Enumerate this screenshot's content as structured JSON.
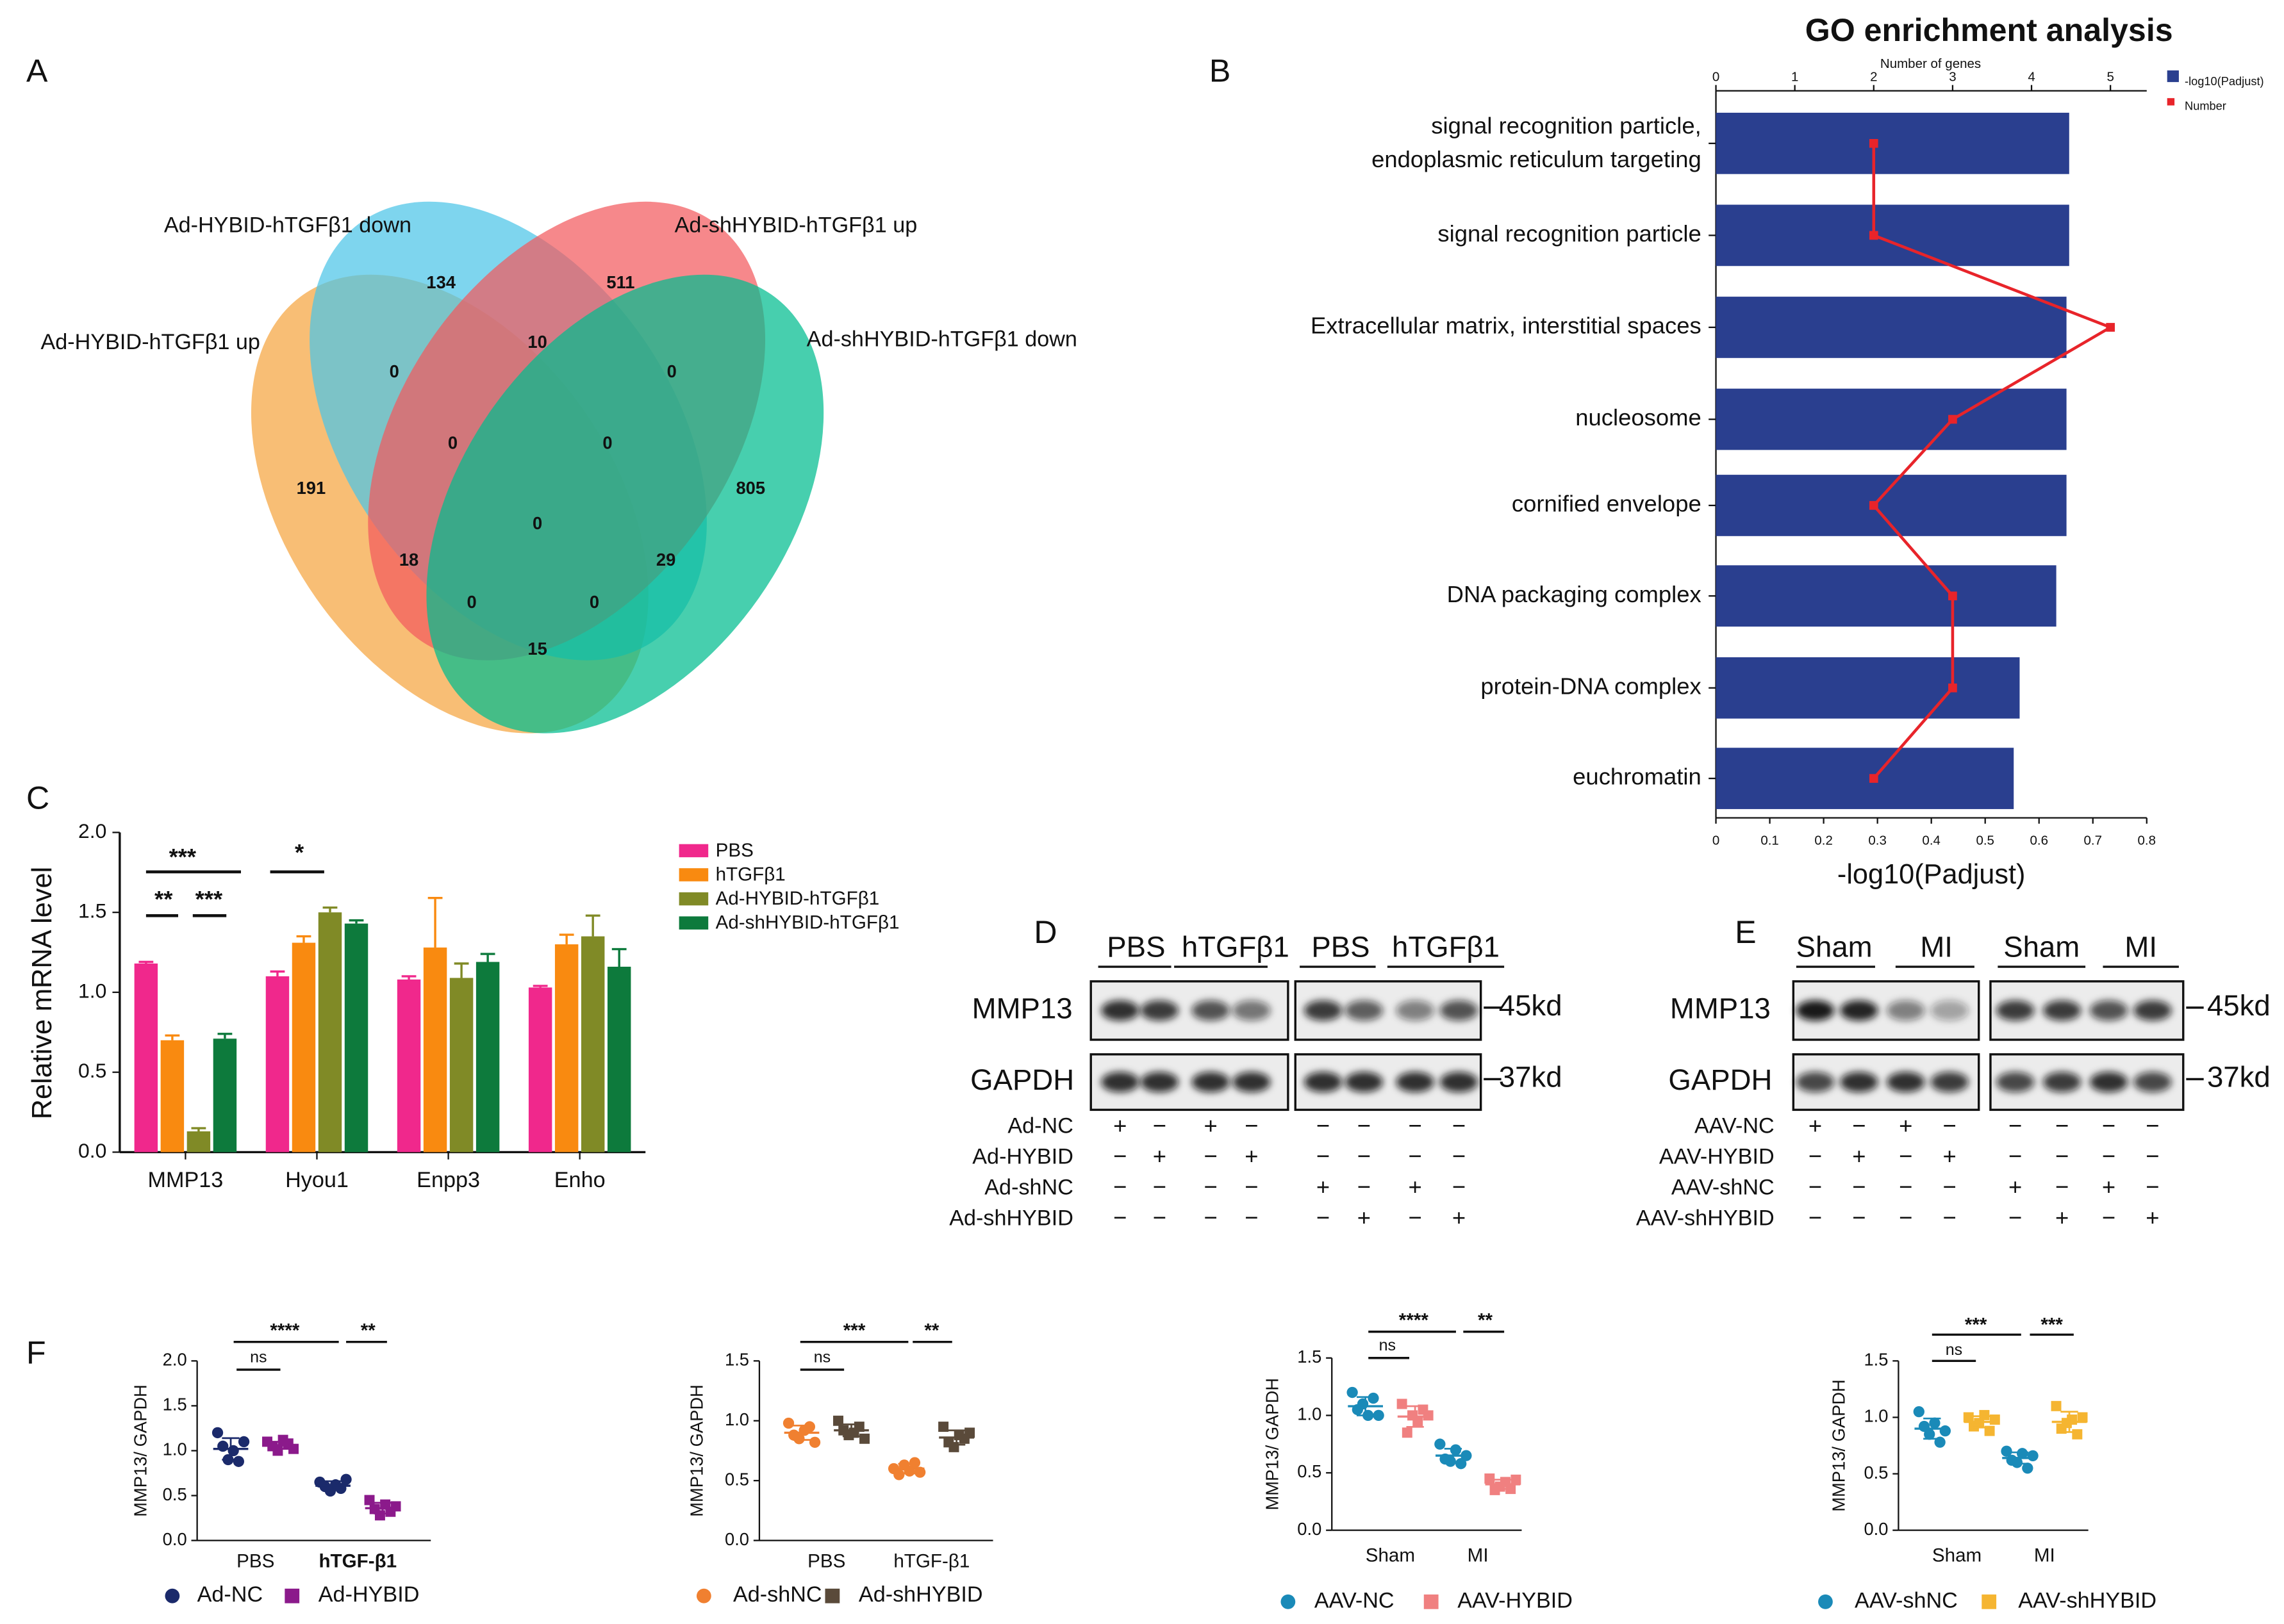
{
  "panel_labels": [
    "A",
    "B",
    "C",
    "D",
    "E",
    "F"
  ],
  "venn": {
    "sets": [
      "Ad-HYBID-hTGFβ1 up",
      "Ad-HYBID-hTGFβ1 down",
      "Ad-shHYBID-hTGFβ1 up",
      "Ad-shHYBID-hTGFβ1 down"
    ],
    "colors": [
      "#f5a540",
      "#4cc5e8",
      "#f25a5e",
      "#00bc8f"
    ],
    "counts": [
      134,
      511,
      0,
      10,
      0,
      191,
      0,
      0,
      805,
      18,
      0,
      29,
      0,
      0,
      15
    ]
  },
  "blots": [
    {
      "groups": [
        "PBS",
        "hTGFβ1",
        "PBS",
        "hTGFβ1"
      ],
      "proteins": [
        "MMP13",
        "GAPDH"
      ],
      "sizes": [
        "45kd",
        "37kd"
      ],
      "treatments": [
        {
          "name": "Ad-NC",
          "signs": [
            "+",
            "−",
            "+",
            "−",
            "−",
            "−",
            "−",
            "−"
          ]
        },
        {
          "name": "Ad-HYBID",
          "signs": [
            "−",
            "+",
            "−",
            "+",
            "−",
            "−",
            "−",
            "−"
          ]
        },
        {
          "name": "Ad-shNC",
          "signs": [
            "−",
            "−",
            "−",
            "−",
            "+",
            "−",
            "+",
            "−"
          ]
        },
        {
          "name": "Ad-shHYBID",
          "signs": [
            "−",
            "−",
            "−",
            "−",
            "−",
            "+",
            "−",
            "+"
          ]
        }
      ]
    },
    {
      "groups": [
        "Sham",
        "MI",
        "Sham",
        "MI"
      ],
      "proteins": [
        "MMP13",
        "GAPDH"
      ],
      "sizes": [
        "45kd",
        "37kd"
      ],
      "treatments": [
        {
          "name": "AAV-NC",
          "signs": [
            "+",
            "−",
            "+",
            "−",
            "−",
            "−",
            "−",
            "−"
          ]
        },
        {
          "name": "AAV-HYBID",
          "signs": [
            "−",
            "+",
            "−",
            "+",
            "−",
            "−",
            "−",
            "−"
          ]
        },
        {
          "name": "AAV-shNC",
          "signs": [
            "−",
            "−",
            "−",
            "−",
            "+",
            "−",
            "+",
            "−"
          ]
        },
        {
          "name": "AAV-shHYBID",
          "signs": [
            "−",
            "−",
            "−",
            "−",
            "−",
            "+",
            "−",
            "+"
          ]
        }
      ]
    }
  ],
  "chart_data": [
    {
      "type": "hbar",
      "title": "GO enrichment analysis",
      "xlabel": "-log10(Padjust)",
      "x2label": "Number of genes",
      "categories": [
        [
          "signal recognition particle,",
          "endoplasmic reticulum targeting"
        ],
        "signal recognition particle",
        "Extracellular matrix, interstitial spaces",
        "nucleosome",
        "cornified envelope",
        "DNA packaging complex",
        "protein-DNA complex",
        "euchromatin"
      ],
      "category_colors": [
        "#111111",
        "#111111",
        "#e8242a",
        "#111111",
        "#111111",
        "#111111",
        "#111111",
        "#111111"
      ],
      "xlim": [
        0,
        0.8
      ],
      "xticks": [
        0,
        0.1,
        0.2,
        0.3,
        0.4,
        0.5,
        0.6,
        0.7,
        0.8
      ],
      "x2lim": [
        0,
        5.46
      ],
      "x2ticks": [
        0,
        1,
        2,
        3,
        4,
        5
      ],
      "series": [
        {
          "name": "-log10(Padjust)",
          "color": "#2a3f8f",
          "values": [
            0.656,
            0.656,
            0.651,
            0.651,
            0.651,
            0.632,
            0.564,
            0.553
          ]
        },
        {
          "name": "Number",
          "color": "#e8242a",
          "axis": "x2",
          "values": [
            2,
            2,
            5,
            3,
            2,
            3,
            3,
            2
          ]
        }
      ]
    },
    {
      "type": "grouped_bar",
      "ylabel": "Relative mRNA level",
      "categories": [
        "MMP13",
        "Hyou1",
        "Enpp3",
        "Enho"
      ],
      "ylim": [
        0,
        2
      ],
      "yticks": [
        {
          "value": 0,
          "label": "0.0"
        },
        0.5,
        {
          "value": 1,
          "label": "1.0"
        },
        1.5,
        {
          "value": 2,
          "label": "2.0"
        }
      ],
      "series": [
        {
          "name": "PBS",
          "color": "#f0288c",
          "values": [
            1.18,
            1.1,
            1.08,
            1.03
          ],
          "errors": [
            0.01,
            0.03,
            0.02,
            0.01
          ]
        },
        {
          "name": "hTGFβ1",
          "color": "#f98a10",
          "values": [
            0.7,
            1.31,
            1.28,
            1.3
          ],
          "errors": [
            0.03,
            0.04,
            0.31,
            0.06
          ]
        },
        {
          "name": "Ad-HYBID-hTGFβ1",
          "color": "#808a26",
          "values": [
            0.13,
            1.5,
            1.09,
            1.35
          ],
          "errors": [
            0.02,
            0.03,
            0.09,
            0.13
          ]
        },
        {
          "name": "Ad-shHYBID-hTGFβ1",
          "color": "#0d7a3c",
          "values": [
            0.71,
            1.43,
            1.19,
            1.16
          ],
          "errors": [
            0.03,
            0.02,
            0.05,
            0.11
          ]
        }
      ],
      "annotations": [
        "***",
        "**",
        "***",
        "*"
      ]
    },
    {
      "type": "dot",
      "ylabel": "MMP13/ GAPDH",
      "categories": [
        "PBS",
        "hTGF-β1"
      ],
      "ylim": [
        0,
        2
      ],
      "yticks": [
        {
          "value": 0,
          "label": "0.0"
        },
        0.5,
        {
          "value": 1,
          "label": "1.0"
        },
        1.5,
        {
          "value": 2,
          "label": "2.0"
        }
      ],
      "series": [
        {
          "name": "Ad-NC",
          "color": "#1b2a6b",
          "marker": "circle",
          "values": [
            [
              1.2,
              1.05,
              0.9,
              1.0,
              0.88,
              1.1
            ],
            [
              0.65,
              0.6,
              0.55,
              0.62,
              0.58,
              0.68
            ]
          ],
          "means": [
            1.02,
            0.61
          ],
          "errors": [
            0.12,
            0.05
          ]
        },
        {
          "name": "Ad-HYBID",
          "color": "#8b1a8b",
          "marker": "square",
          "values": [
            [
              1.1,
              1.05,
              1.0,
              1.12,
              1.08,
              1.02
            ],
            [
              0.45,
              0.35,
              0.28,
              0.4,
              0.32,
              0.38
            ]
          ],
          "means": [
            1.06,
            0.36
          ],
          "errors": [
            0.04,
            0.06
          ]
        }
      ],
      "annotations": [
        "ns",
        "****",
        "**"
      ]
    },
    {
      "type": "dot",
      "ylabel": "MMP13/ GAPDH",
      "categories": [
        "PBS",
        "hTGF-β1"
      ],
      "ylim": [
        0,
        1.5
      ],
      "yticks": [
        {
          "value": 0,
          "label": "0.0"
        },
        0.5,
        {
          "value": 1,
          "label": "1.0"
        },
        1.5
      ],
      "series": [
        {
          "name": "Ad-shNC",
          "color": "#f08030",
          "marker": "circle",
          "values": [
            [
              0.98,
              0.88,
              0.85,
              0.92,
              0.95,
              0.82
            ],
            [
              0.6,
              0.55,
              0.63,
              0.58,
              0.65,
              0.57
            ]
          ],
          "means": [
            0.9,
            0.6
          ],
          "errors": [
            0.06,
            0.04
          ]
        },
        {
          "name": "Ad-shHYBID",
          "color": "#5a4a3a",
          "marker": "square",
          "values": [
            [
              1.0,
              0.92,
              0.88,
              0.9,
              0.95,
              0.85
            ],
            [
              0.95,
              0.82,
              0.78,
              0.88,
              0.85,
              0.9
            ]
          ],
          "means": [
            0.92,
            0.86
          ],
          "errors": [
            0.05,
            0.06
          ]
        }
      ],
      "annotations": [
        "ns",
        "***",
        "**"
      ]
    },
    {
      "type": "dot",
      "ylabel": "MMP13/ GAPDH",
      "categories": [
        "Sham",
        "MI"
      ],
      "ylim": [
        0,
        1.5
      ],
      "yticks": [
        {
          "value": 0,
          "label": "0.0"
        },
        0.5,
        {
          "value": 1,
          "label": "1.0"
        },
        1.5
      ],
      "series": [
        {
          "name": "AAV-NC",
          "color": "#1a8ab8",
          "marker": "circle",
          "values": [
            [
              1.2,
              1.05,
              1.1,
              1.0,
              1.15,
              1.0
            ],
            [
              0.75,
              0.62,
              0.6,
              0.7,
              0.58,
              0.65
            ]
          ],
          "means": [
            1.08,
            0.65
          ],
          "errors": [
            0.08,
            0.06
          ]
        },
        {
          "name": "AAV-HYBID",
          "color": "#f08080",
          "marker": "square",
          "values": [
            [
              1.1,
              0.85,
              1.0,
              0.95,
              1.05,
              1.0
            ],
            [
              0.45,
              0.35,
              0.38,
              0.42,
              0.36,
              0.44
            ]
          ],
          "means": [
            0.99,
            0.4
          ],
          "errors": [
            0.09,
            0.04
          ]
        }
      ],
      "annotations": [
        "ns",
        "****",
        "**"
      ]
    },
    {
      "type": "dot",
      "ylabel": "MMP13/ GAPDH",
      "categories": [
        "Sham",
        "MI"
      ],
      "ylim": [
        0,
        1.5
      ],
      "yticks": [
        {
          "value": 0,
          "label": "0.0"
        },
        0.5,
        {
          "value": 1,
          "label": "1.0"
        },
        1.5
      ],
      "series": [
        {
          "name": "AAV-shNC",
          "color": "#1a8ab8",
          "marker": "circle",
          "values": [
            [
              1.05,
              0.92,
              0.85,
              0.95,
              0.78,
              0.88
            ],
            [
              0.7,
              0.62,
              0.6,
              0.68,
              0.55,
              0.66
            ]
          ],
          "means": [
            0.9,
            0.64
          ],
          "errors": [
            0.09,
            0.05
          ]
        },
        {
          "name": "AAV-shHYBID",
          "color": "#f5b531",
          "marker": "square",
          "values": [
            [
              1.0,
              0.92,
              0.95,
              1.02,
              0.88,
              0.98
            ],
            [
              1.1,
              0.9,
              0.95,
              0.98,
              0.85,
              1.0
            ]
          ],
          "means": [
            0.96,
            0.96
          ],
          "errors": [
            0.05,
            0.09
          ]
        }
      ],
      "annotations": [
        "ns",
        "***",
        "***"
      ]
    }
  ]
}
